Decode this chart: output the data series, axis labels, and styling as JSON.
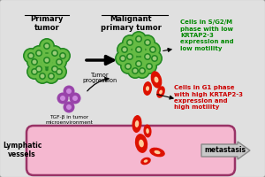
{
  "bg_color": "#e0e0e0",
  "border_color": "#999999",
  "primary_tumor_label": "Primary\ntumor",
  "malignant_label": "Malignant\nprimary tumor",
  "lymphatic_label": "Lymphatic\nvessels",
  "metastasis_label": "metastasis",
  "tumor_prog_label": "Tumor\nprogression",
  "tgf_label": "TGF-β in tumor\nmicroenvironment",
  "green_text1": "Cells in S/G2/M\nphase with low\nKRTAP2-3\nexpression and\nlow motility",
  "red_text1": "Cells in G1 phase\nwith high KRTAP2-3\nexpression and\nhigh motility",
  "green_color": "#008800",
  "red_color": "#cc0000",
  "cell_green_light": "#66bb44",
  "cell_green_dark": "#228822",
  "cell_green_border": "#115511",
  "cell_nucleus": "#55aa55",
  "cell_red": "#dd1100",
  "cell_red_nucleus": "#ffcc99",
  "lymph_fill": "#f5b8d0",
  "lymph_border": "#993366",
  "purple_color": "#9944aa",
  "purple_light": "#cc88dd",
  "fig_width": 3.0,
  "fig_height": 2.0,
  "dpi": 100
}
